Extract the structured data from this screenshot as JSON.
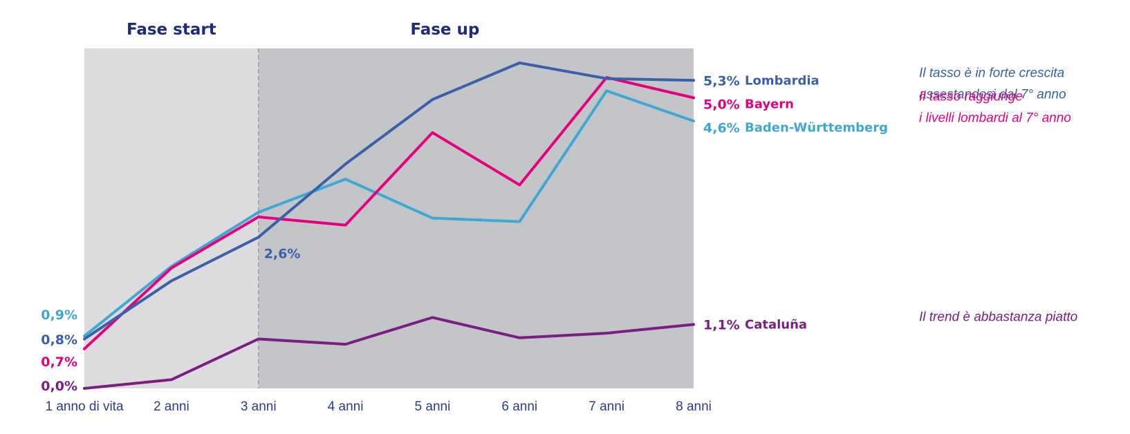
{
  "chart_data": {
    "type": "line",
    "categories": [
      "1 anno di vita",
      "2 anni",
      "3 anni",
      "4 anni",
      "5 anni",
      "6 anni",
      "7 anni",
      "8 anni"
    ],
    "ylim": [
      0,
      5.85
    ],
    "grid": false,
    "legend": "end-of-line labels on the right",
    "phases": [
      {
        "label": "Fase start",
        "from": 0,
        "to": 2,
        "color": "#dcdcde"
      },
      {
        "label": "Fase up",
        "from": 2,
        "to": 7,
        "color": "#c4c5c8"
      }
    ],
    "series": [
      {
        "name": "Cataluña",
        "color": "#7b1e82",
        "values": [
          0.0,
          0.15,
          0.85,
          0.76,
          1.22,
          0.87,
          0.95,
          1.1
        ],
        "start_label": "0,0%",
        "end_label": "1,1%"
      },
      {
        "name": "Baden-Württemberg",
        "color": "#3fa8d2",
        "values": [
          0.9,
          2.1,
          3.03,
          3.6,
          2.93,
          2.87,
          5.12,
          4.6
        ],
        "start_label": "0,9%",
        "end_label": "4,6%"
      },
      {
        "name": "Bayern",
        "color": "#e5007e",
        "values": [
          0.68,
          2.07,
          2.95,
          2.81,
          4.4,
          3.5,
          5.35,
          5.0
        ],
        "start_label": "0,7%",
        "end_label": "5,0%"
      },
      {
        "name": "Lombardia",
        "color": "#3b60aa",
        "values": [
          0.85,
          1.85,
          2.6,
          3.86,
          4.97,
          5.6,
          5.33,
          5.3
        ],
        "start_label": "0,8%",
        "end_label": "5,3%"
      }
    ],
    "annotations": [
      {
        "text": "2,6%",
        "series": "Lombardia",
        "category": "3 anni",
        "color": "#3b60aa"
      }
    ],
    "notes": [
      {
        "lines": [
          "Il tasso è in forte crescita",
          "assestandosi dal 7° anno"
        ],
        "color": "#3b60aa",
        "series": "Lombardia"
      },
      {
        "lines": [
          "Il tasso raggiunge",
          "i livelli lombardi al 7° anno"
        ],
        "color": "#e5007e",
        "series": "Bayern"
      },
      {
        "lines": [
          "Il trend è abbastanza piatto"
        ],
        "color": "#7b1e82",
        "series": "Cataluña"
      }
    ]
  }
}
